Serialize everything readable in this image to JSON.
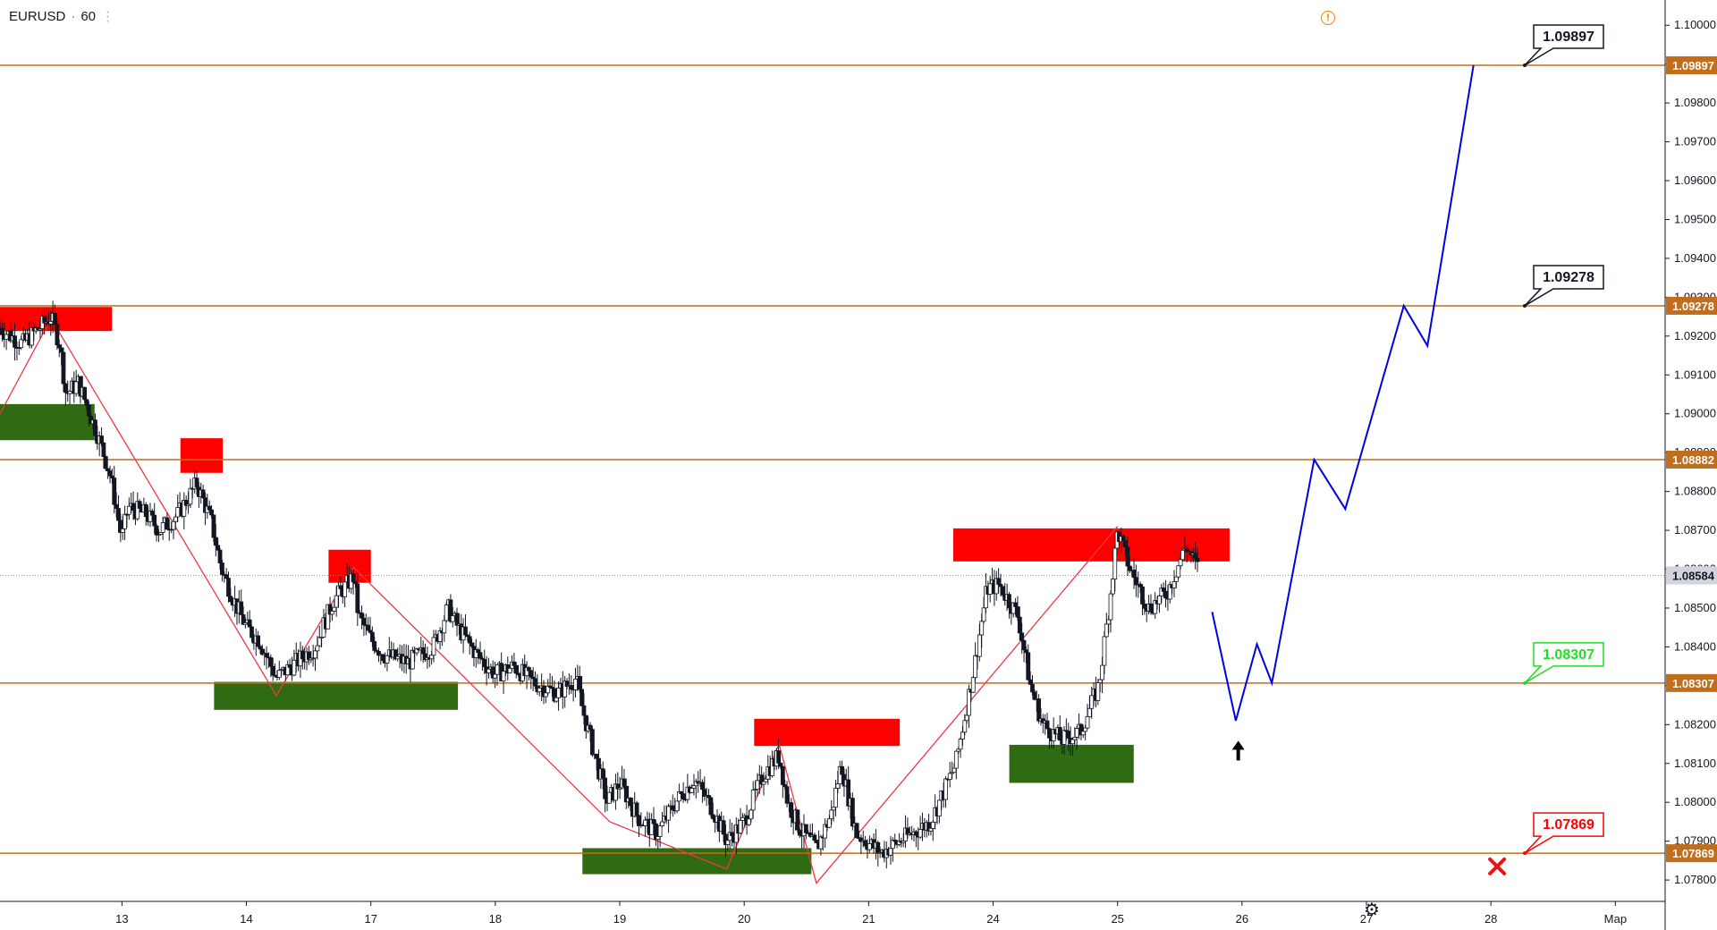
{
  "header": {
    "symbol": "EURUSD",
    "separator": "·",
    "interval": "60",
    "dots": "⋮"
  },
  "icons": {
    "warning": "warning-icon",
    "settings": "gear-icon",
    "target_arrow": "arrow-up-icon",
    "stop_cross": "cross-icon"
  },
  "colors": {
    "level_line": "#c26d1a",
    "resistance_zone": "#ff0000",
    "support_zone": "#2e6b12",
    "zigzag": "#f23645",
    "projection": "#0000e6",
    "candle": "#131722",
    "axis_tag_bg": "#c26d1a",
    "last_price_bg": "#d1d4dc",
    "callout_target": "#131722",
    "callout_entry": "#22dd22",
    "callout_stop": "#ff0000"
  },
  "chart_data": {
    "type": "candlestick",
    "title": "EURUSD · 60",
    "ylim": [
      1.07745,
      1.10065
    ],
    "y_ticks": [
      "1.07800",
      "1.07900",
      "1.08000",
      "1.08100",
      "1.08200",
      "1.08300",
      "1.08400",
      "1.08500",
      "1.08600",
      "1.08700",
      "1.08800",
      "1.08900",
      "1.09000",
      "1.09100",
      "1.09200",
      "1.09300",
      "1.09400",
      "1.09500",
      "1.09600",
      "1.09700",
      "1.09800",
      "1.09900",
      "1.10000"
    ],
    "x_ticks": [
      "13",
      "14",
      "17",
      "18",
      "19",
      "20",
      "21",
      "24",
      "25",
      "26",
      "27",
      "28",
      "Мар"
    ],
    "x_tick_index": [
      0,
      1,
      2,
      3,
      4,
      5,
      6,
      7,
      8,
      9,
      10,
      11,
      12
    ],
    "x_range": [
      -0.98,
      12.4
    ],
    "last_price": "1.08584",
    "levels": [
      {
        "value": 1.09897,
        "label": "1.09897"
      },
      {
        "value": 1.09278,
        "label": "1.09278"
      },
      {
        "value": 1.08882,
        "label": "1.08882"
      },
      {
        "value": 1.08307,
        "label": "1.08307"
      },
      {
        "value": 1.07869,
        "label": "1.07869"
      }
    ],
    "resistance_zones": [
      {
        "x": [
          -0.98,
          -0.08
        ],
        "y": [
          1.09213,
          1.09275
        ]
      },
      {
        "x": [
          0.47,
          0.81
        ],
        "y": [
          1.08848,
          1.08937
        ]
      },
      {
        "x": [
          1.66,
          2.0
        ],
        "y": [
          1.08565,
          1.0865
        ]
      },
      {
        "x": [
          5.08,
          6.25
        ],
        "y": [
          1.08145,
          1.08215
        ]
      },
      {
        "x": [
          6.68,
          8.9
        ],
        "y": [
          1.0862,
          1.08705
        ]
      }
    ],
    "support_zones": [
      {
        "x": [
          -0.98,
          -0.22
        ],
        "y": [
          1.08932,
          1.09025
        ]
      },
      {
        "x": [
          0.74,
          2.7
        ],
        "y": [
          1.08238,
          1.0831
        ]
      },
      {
        "x": [
          3.7,
          5.54
        ],
        "y": [
          1.07815,
          1.07882
        ]
      },
      {
        "x": [
          7.13,
          8.13
        ],
        "y": [
          1.0805,
          1.08148
        ]
      }
    ],
    "zigzag": [
      [
        -0.98,
        1.09
      ],
      [
        -0.57,
        1.09245
      ],
      [
        1.24,
        1.08275
      ],
      [
        1.86,
        1.08605
      ],
      [
        3.92,
        1.0795
      ],
      [
        4.86,
        1.07828
      ],
      [
        5.28,
        1.0815
      ],
      [
        5.58,
        1.07792
      ],
      [
        8.0,
        1.0871
      ]
    ],
    "projection": [
      [
        8.76,
        1.0849
      ],
      [
        8.95,
        1.0821
      ],
      [
        9.12,
        1.08407
      ],
      [
        9.24,
        1.08307
      ],
      [
        9.58,
        1.08882
      ],
      [
        9.83,
        1.08755
      ],
      [
        10.3,
        1.09278
      ],
      [
        10.49,
        1.09175
      ],
      [
        10.86,
        1.09897
      ]
    ],
    "callouts": [
      {
        "label": "1.09897",
        "kind": "target",
        "anchor": [
          11.2,
          1.09897
        ]
      },
      {
        "label": "1.09278",
        "kind": "target",
        "anchor": [
          11.2,
          1.09278
        ]
      },
      {
        "label": "1.08307",
        "kind": "entry",
        "anchor": [
          11.2,
          1.08307
        ]
      },
      {
        "label": "1.07869",
        "kind": "stop",
        "anchor": [
          11.2,
          1.07869
        ]
      }
    ],
    "entry_arrow": [
      8.97,
      1.0814
    ],
    "stop_marker": [
      11.05,
      1.07835
    ],
    "candle_path": [
      [
        -0.98,
        1.0922
      ],
      [
        -0.8,
        1.0918
      ],
      [
        -0.57,
        1.0925
      ],
      [
        -0.5,
        1.0918
      ],
      [
        -0.45,
        1.0905
      ],
      [
        -0.35,
        1.0908
      ],
      [
        -0.2,
        1.0895
      ],
      [
        -0.1,
        1.0885
      ],
      [
        0.0,
        1.0868
      ],
      [
        0.05,
        1.0876
      ],
      [
        0.2,
        1.0874
      ],
      [
        0.3,
        1.087
      ],
      [
        0.45,
        1.0874
      ],
      [
        0.6,
        1.0882
      ],
      [
        0.65,
        1.0878
      ],
      [
        0.72,
        1.0872
      ],
      [
        0.8,
        1.086
      ],
      [
        0.9,
        1.0852
      ],
      [
        1.0,
        1.0845
      ],
      [
        1.1,
        1.0842
      ],
      [
        1.24,
        1.0832
      ],
      [
        1.4,
        1.0836
      ],
      [
        1.55,
        1.084
      ],
      [
        1.7,
        1.0852
      ],
      [
        1.86,
        1.0858
      ],
      [
        1.9,
        1.0848
      ],
      [
        2.0,
        1.0842
      ],
      [
        2.1,
        1.0838
      ],
      [
        2.3,
        1.0836
      ],
      [
        2.5,
        1.084
      ],
      [
        2.62,
        1.085
      ],
      [
        2.7,
        1.0845
      ],
      [
        2.85,
        1.0838
      ],
      [
        3.0,
        1.0833
      ],
      [
        3.15,
        1.0835
      ],
      [
        3.3,
        1.0831
      ],
      [
        3.5,
        1.0828
      ],
      [
        3.65,
        1.0832
      ],
      [
        3.7,
        1.0824
      ],
      [
        3.8,
        1.0812
      ],
      [
        3.9,
        1.08
      ],
      [
        4.0,
        1.0805
      ],
      [
        4.15,
        1.0796
      ],
      [
        4.3,
        1.0792
      ],
      [
        4.45,
        1.08
      ],
      [
        4.6,
        1.0806
      ],
      [
        4.75,
        1.0798
      ],
      [
        4.86,
        1.079
      ],
      [
        5.0,
        1.0795
      ],
      [
        5.15,
        1.0807
      ],
      [
        5.28,
        1.0812
      ],
      [
        5.35,
        1.08
      ],
      [
        5.45,
        1.0793
      ],
      [
        5.58,
        1.0788
      ],
      [
        5.7,
        1.0797
      ],
      [
        5.78,
        1.081
      ],
      [
        5.9,
        1.0792
      ],
      [
        6.1,
        1.0787
      ],
      [
        6.3,
        1.0791
      ],
      [
        6.5,
        1.0795
      ],
      [
        6.7,
        1.081
      ],
      [
        6.85,
        1.0835
      ],
      [
        6.95,
        1.0855
      ],
      [
        7.05,
        1.0856
      ],
      [
        7.2,
        1.0848
      ],
      [
        7.3,
        1.083
      ],
      [
        7.4,
        1.082
      ],
      [
        7.55,
        1.0816
      ],
      [
        7.7,
        1.0818
      ],
      [
        7.85,
        1.083
      ],
      [
        7.93,
        1.085
      ],
      [
        8.0,
        1.087
      ],
      [
        8.1,
        1.086
      ],
      [
        8.25,
        1.085
      ],
      [
        8.4,
        1.0854
      ],
      [
        8.55,
        1.0866
      ],
      [
        8.65,
        1.086
      ]
    ]
  }
}
